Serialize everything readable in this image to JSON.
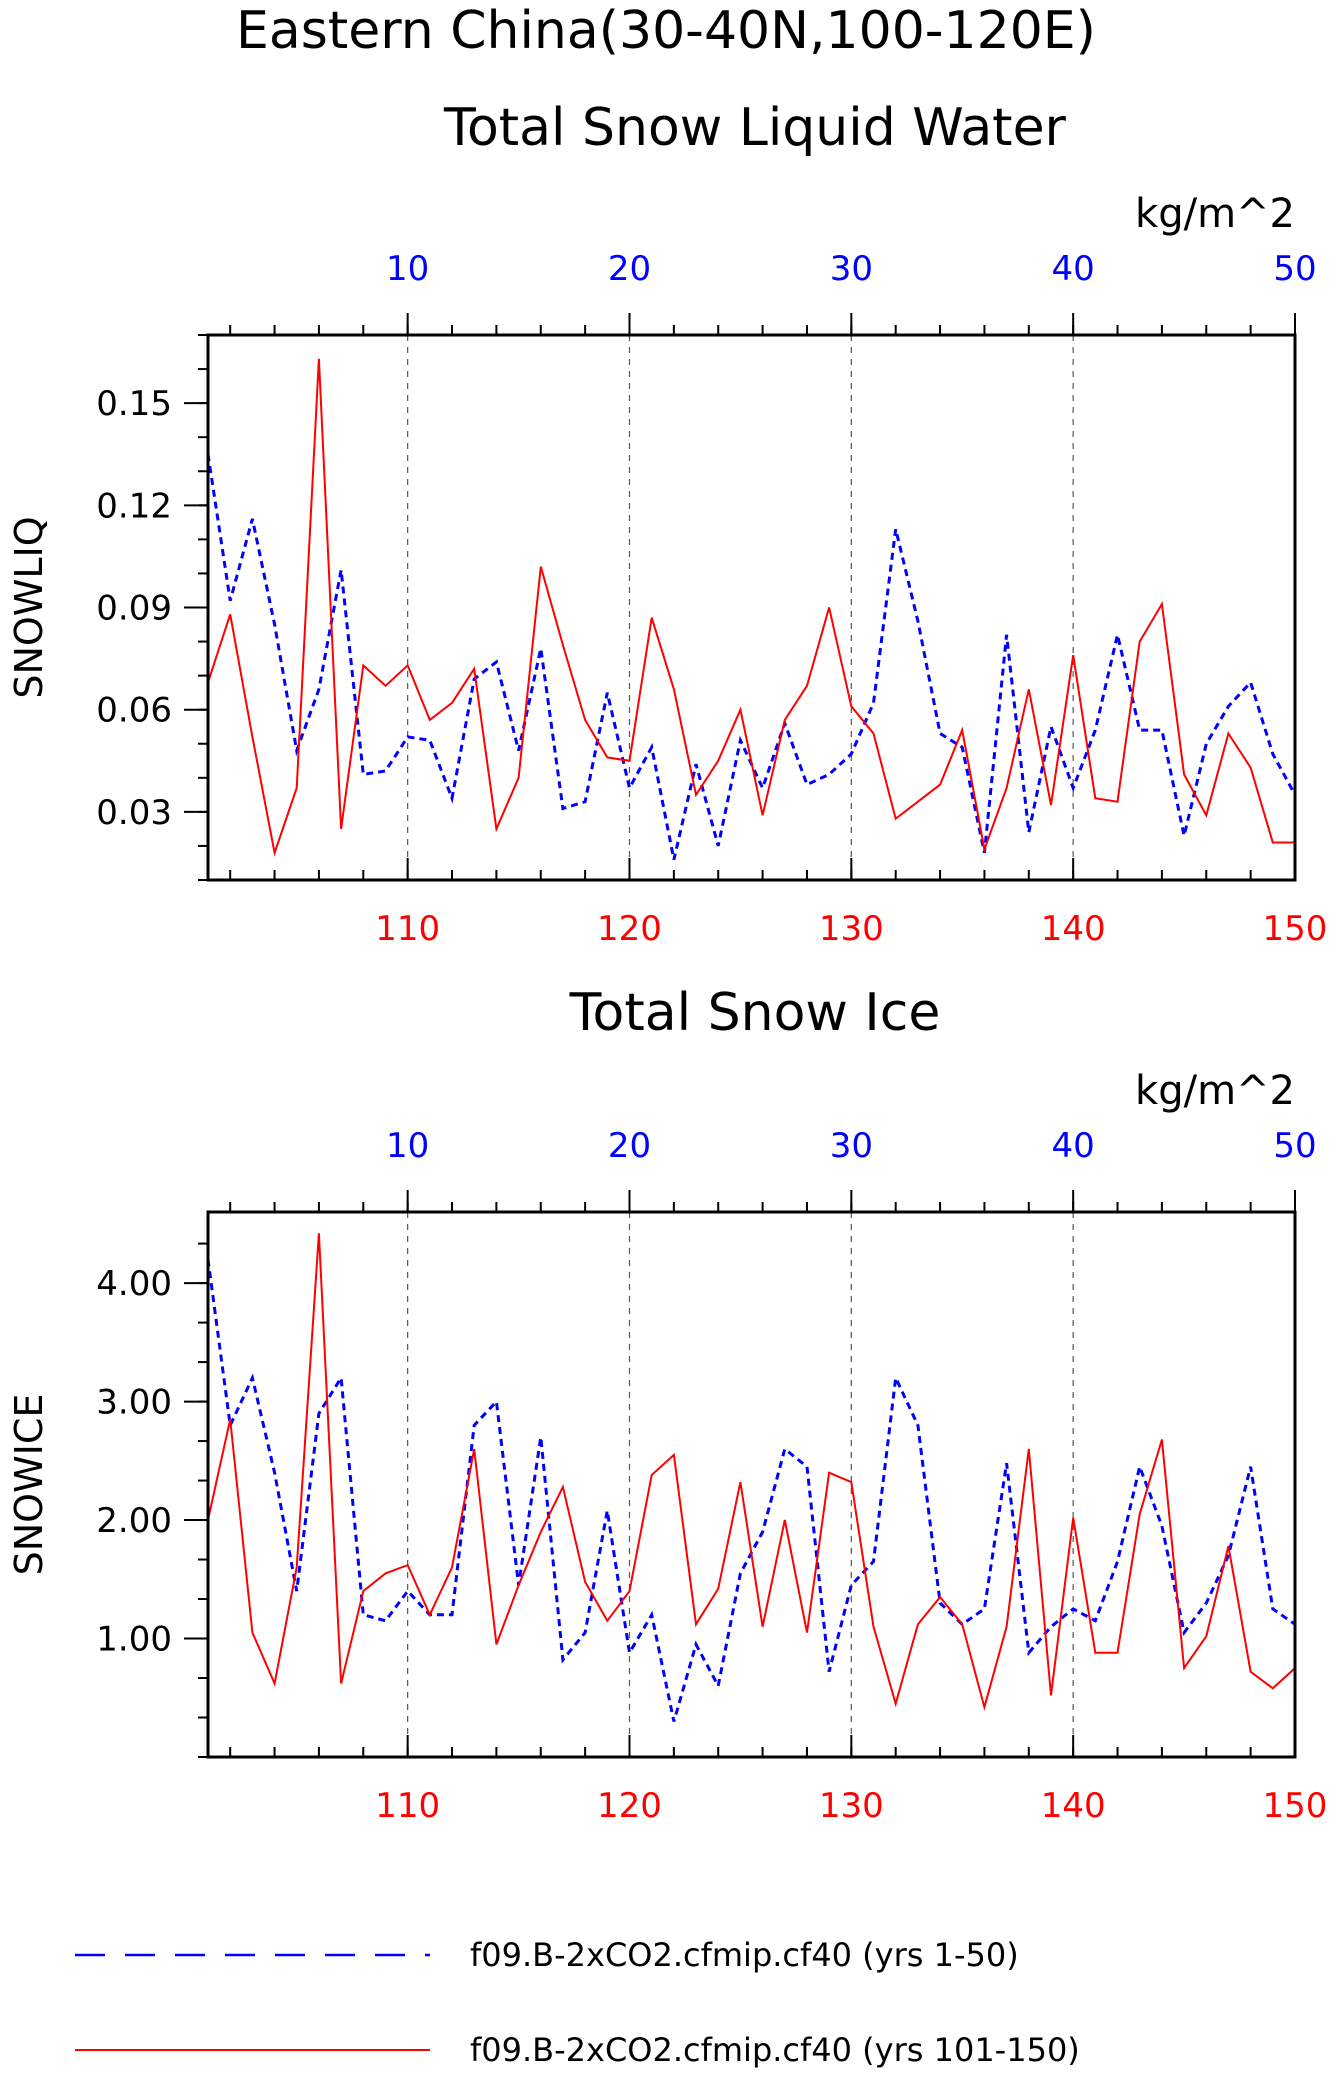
{
  "titles": {
    "line1": "Eastern China(30-40N,100-120E)",
    "line2": "Total Snow Liquid Water",
    "panel2": "Total Snow Ice"
  },
  "colors": {
    "blue": "#0000ff",
    "red": "#ff0000",
    "axis": "#000000"
  },
  "legend": [
    {
      "label": "f09.B-2xCO2.cfmip.cf40 (yrs 1-50)",
      "color": "#0000ff",
      "style": "dashed"
    },
    {
      "label": "f09.B-2xCO2.cfmip.cf40 (yrs 101-150)",
      "color": "#ff0000",
      "style": "solid"
    }
  ],
  "chart_data": [
    {
      "type": "line",
      "title": "Total Snow Liquid Water",
      "ylabel": "SNOWLIQ",
      "units": "kg/m^2",
      "ylim": [
        0.01,
        0.17
      ],
      "yticks": [
        0.03,
        0.06,
        0.09,
        0.12,
        0.15
      ],
      "ytick_labels": [
        "0.03",
        "0.06",
        "0.09",
        "0.12",
        "0.15"
      ],
      "bottom_axis": {
        "range": [
          101,
          150
        ],
        "ticks": [
          110,
          120,
          130,
          140,
          150
        ],
        "color": "#ff0000"
      },
      "top_axis": {
        "range": [
          1,
          50
        ],
        "ticks": [
          10,
          20,
          30,
          40,
          50
        ],
        "color": "#0000ff"
      },
      "grid": "dashed vertical at 10,20,30,40",
      "series": [
        {
          "name": "f09.B-2xCO2.cfmip.cf40 (yrs 1-50)",
          "color": "#0000ff",
          "style": "dashed",
          "axis": "top",
          "x": [
            1,
            2,
            3,
            4,
            5,
            6,
            7,
            8,
            9,
            10,
            11,
            12,
            13,
            14,
            15,
            16,
            17,
            18,
            19,
            20,
            21,
            22,
            23,
            24,
            25,
            26,
            27,
            28,
            29,
            30,
            31,
            32,
            33,
            34,
            35,
            36,
            37,
            38,
            39,
            40,
            41,
            42,
            43,
            44,
            45,
            46,
            47,
            48,
            49,
            50
          ],
          "values": [
            0.135,
            0.092,
            0.116,
            0.085,
            0.048,
            0.066,
            0.101,
            0.041,
            0.042,
            0.052,
            0.051,
            0.034,
            0.069,
            0.074,
            0.048,
            0.078,
            0.031,
            0.033,
            0.065,
            0.037,
            0.049,
            0.016,
            0.044,
            0.02,
            0.051,
            0.037,
            0.056,
            0.038,
            0.041,
            0.047,
            0.062,
            0.113,
            0.086,
            0.053,
            0.049,
            0.018,
            0.082,
            0.024,
            0.055,
            0.037,
            0.054,
            0.082,
            0.054,
            0.054,
            0.023,
            0.05,
            0.061,
            0.068,
            0.047,
            0.035
          ]
        },
        {
          "name": "f09.B-2xCO2.cfmip.cf40 (yrs 101-150)",
          "color": "#ff0000",
          "style": "solid",
          "axis": "bottom",
          "x": [
            101,
            102,
            103,
            104,
            105,
            106,
            107,
            108,
            109,
            110,
            111,
            112,
            113,
            114,
            115,
            116,
            117,
            118,
            119,
            120,
            121,
            122,
            123,
            124,
            125,
            126,
            127,
            128,
            129,
            130,
            131,
            132,
            133,
            134,
            135,
            136,
            137,
            138,
            139,
            140,
            141,
            142,
            143,
            144,
            145,
            146,
            147,
            148,
            149,
            150
          ],
          "values": [
            0.068,
            0.088,
            0.052,
            0.018,
            0.037,
            0.163,
            0.025,
            0.073,
            0.067,
            0.073,
            0.057,
            0.062,
            0.072,
            0.025,
            0.04,
            0.102,
            0.079,
            0.057,
            0.046,
            0.045,
            0.087,
            0.066,
            0.035,
            0.045,
            0.06,
            0.029,
            0.057,
            0.067,
            0.09,
            0.061,
            0.053,
            0.028,
            0.033,
            0.038,
            0.054,
            0.019,
            0.037,
            0.066,
            0.032,
            0.076,
            0.034,
            0.033,
            0.08,
            0.091,
            0.041,
            0.029,
            0.053,
            0.043,
            0.021,
            0.021
          ]
        }
      ]
    },
    {
      "type": "line",
      "title": "Total Snow Ice",
      "ylabel": "SNOWICE",
      "units": "kg/m^2",
      "ylim": [
        0.0,
        4.6
      ],
      "yticks": [
        1.0,
        2.0,
        3.0,
        4.0
      ],
      "ytick_labels": [
        "1.00",
        "2.00",
        "3.00",
        "4.00"
      ],
      "bottom_axis": {
        "range": [
          101,
          150
        ],
        "ticks": [
          110,
          120,
          130,
          140,
          150
        ],
        "color": "#ff0000"
      },
      "top_axis": {
        "range": [
          1,
          50
        ],
        "ticks": [
          10,
          20,
          30,
          40,
          50
        ],
        "color": "#0000ff"
      },
      "grid": "dashed vertical at 10,20,30,40",
      "series": [
        {
          "name": "f09.B-2xCO2.cfmip.cf40 (yrs 1-50)",
          "color": "#0000ff",
          "style": "dashed",
          "axis": "top",
          "x": [
            1,
            2,
            3,
            4,
            5,
            6,
            7,
            8,
            9,
            10,
            11,
            12,
            13,
            14,
            15,
            16,
            17,
            18,
            19,
            20,
            21,
            22,
            23,
            24,
            25,
            26,
            27,
            28,
            29,
            30,
            31,
            32,
            33,
            34,
            35,
            36,
            37,
            38,
            39,
            40,
            41,
            42,
            43,
            44,
            45,
            46,
            47,
            48,
            49,
            50
          ],
          "values": [
            4.2,
            2.8,
            3.2,
            2.4,
            1.4,
            2.9,
            3.2,
            1.2,
            1.15,
            1.4,
            1.2,
            1.2,
            2.8,
            3.0,
            1.45,
            2.7,
            0.82,
            1.05,
            2.08,
            0.88,
            1.2,
            0.3,
            0.95,
            0.6,
            1.55,
            1.9,
            2.6,
            2.45,
            0.72,
            1.45,
            1.65,
            3.2,
            2.8,
            1.3,
            1.12,
            1.25,
            2.48,
            0.88,
            1.1,
            1.25,
            1.15,
            1.65,
            2.45,
            1.95,
            1.05,
            1.3,
            1.7,
            2.45,
            1.25,
            1.12
          ]
        },
        {
          "name": "f09.B-2xCO2.cfmip.cf40 (yrs 101-150)",
          "color": "#ff0000",
          "style": "solid",
          "axis": "bottom",
          "x": [
            101,
            102,
            103,
            104,
            105,
            106,
            107,
            108,
            109,
            110,
            111,
            112,
            113,
            114,
            115,
            116,
            117,
            118,
            119,
            120,
            121,
            122,
            123,
            124,
            125,
            126,
            127,
            128,
            129,
            130,
            131,
            132,
            133,
            134,
            135,
            136,
            137,
            138,
            139,
            140,
            141,
            142,
            143,
            144,
            145,
            146,
            147,
            148,
            149,
            150
          ],
          "values": [
            2.0,
            2.85,
            1.05,
            0.62,
            1.6,
            4.42,
            0.62,
            1.4,
            1.55,
            1.62,
            1.2,
            1.6,
            2.6,
            0.95,
            1.45,
            1.9,
            2.28,
            1.48,
            1.15,
            1.4,
            2.38,
            2.55,
            1.12,
            1.42,
            2.32,
            1.1,
            2.0,
            1.05,
            2.4,
            2.32,
            1.1,
            0.45,
            1.12,
            1.35,
            1.12,
            0.42,
            1.1,
            2.6,
            0.52,
            2.02,
            0.88,
            0.88,
            2.05,
            2.68,
            0.75,
            1.02,
            1.78,
            0.72,
            0.58,
            0.75
          ]
        }
      ]
    }
  ]
}
